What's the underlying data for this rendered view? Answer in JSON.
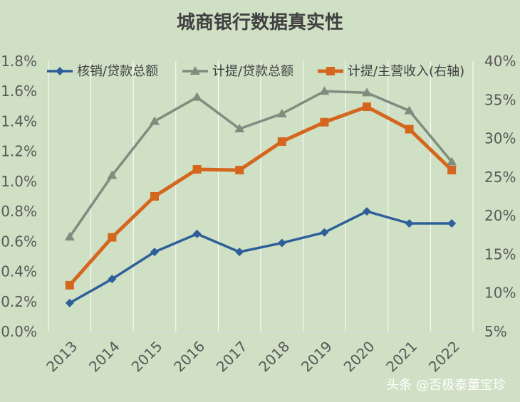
{
  "chart_data": {
    "type": "line",
    "title": "城商银行数据真实性",
    "categories": [
      "2013",
      "2014",
      "2015",
      "2016",
      "2017",
      "2018",
      "2019",
      "2020",
      "2021",
      "2022"
    ],
    "series": [
      {
        "name": "核销/贷款总额",
        "axis": "left",
        "color": "#2e5f9a",
        "marker": "diamond",
        "values": [
          0.0019,
          0.0035,
          0.0053,
          0.0065,
          0.0053,
          0.0059,
          0.0066,
          0.008,
          0.0072,
          0.0072
        ]
      },
      {
        "name": "计提/贷款总额",
        "axis": "left",
        "color": "#7f8d7f",
        "marker": "triangle",
        "values": [
          0.0063,
          0.0104,
          0.014,
          0.0156,
          0.0135,
          0.0145,
          0.016,
          0.0159,
          0.0147,
          0.0113
        ]
      },
      {
        "name": "计提/主营收入(右轴)",
        "axis": "right",
        "color": "#d4661e",
        "marker": "square",
        "values": [
          0.11,
          0.172,
          0.225,
          0.26,
          0.259,
          0.296,
          0.321,
          0.341,
          0.312,
          0.259
        ]
      }
    ],
    "y_left": {
      "min": 0,
      "max": 0.018,
      "step": 0.002,
      "ticks": [
        "0.0%",
        "0.2%",
        "0.4%",
        "0.6%",
        "0.8%",
        "1.0%",
        "1.2%",
        "1.4%",
        "1.6%",
        "1.8%"
      ]
    },
    "y_right": {
      "min": 0.05,
      "max": 0.4,
      "step": 0.05,
      "ticks": [
        "5%",
        "10%",
        "15%",
        "20%",
        "25%",
        "30%",
        "35%",
        "40%"
      ]
    },
    "grid": "vertical",
    "legend_position": "top"
  },
  "watermark": "头条 @否极泰董宝珍"
}
